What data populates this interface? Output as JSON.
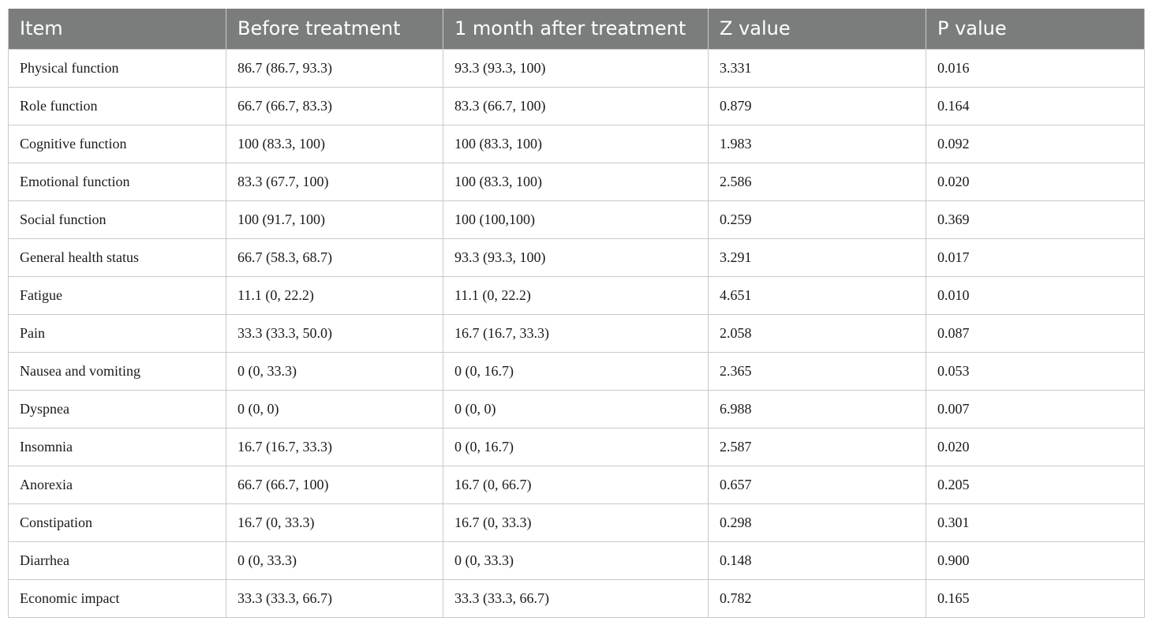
{
  "table": {
    "headers": [
      "Item",
      "Before treatment",
      "1 month after treatment",
      "Z value",
      "P value"
    ],
    "rows": [
      [
        "Physical function",
        "86.7 (86.7, 93.3)",
        "93.3 (93.3, 100)",
        "3.331",
        "0.016"
      ],
      [
        "Role function",
        "66.7 (66.7, 83.3)",
        "83.3 (66.7, 100)",
        "0.879",
        "0.164"
      ],
      [
        "Cognitive function",
        "100 (83.3, 100)",
        "100 (83.3, 100)",
        "1.983",
        "0.092"
      ],
      [
        "Emotional function",
        "83.3 (67.7, 100)",
        "100 (83.3, 100)",
        "2.586",
        "0.020"
      ],
      [
        "Social function",
        "100 (91.7, 100)",
        "100 (100,100)",
        "0.259",
        "0.369"
      ],
      [
        "General health status",
        "66.7 (58.3, 68.7)",
        "93.3 (93.3, 100)",
        "3.291",
        "0.017"
      ],
      [
        "Fatigue",
        "11.1 (0, 22.2)",
        "11.1 (0, 22.2)",
        "4.651",
        "0.010"
      ],
      [
        "Pain",
        "33.3 (33.3, 50.0)",
        "16.7 (16.7, 33.3)",
        "2.058",
        "0.087"
      ],
      [
        "Nausea and vomiting",
        "0 (0, 33.3)",
        "0 (0, 16.7)",
        "2.365",
        "0.053"
      ],
      [
        "Dyspnea",
        "0 (0, 0)",
        "0 (0, 0)",
        "6.988",
        "0.007"
      ],
      [
        "Insomnia",
        "16.7 (16.7, 33.3)",
        "0 (0, 16.7)",
        "2.587",
        "0.020"
      ],
      [
        "Anorexia",
        "66.7 (66.7, 100)",
        "16.7 (0, 66.7)",
        "0.657",
        "0.205"
      ],
      [
        "Constipation",
        "16.7 (0, 33.3)",
        "16.7 (0, 33.3)",
        "0.298",
        "0.301"
      ],
      [
        "Diarrhea",
        "0 (0, 33.3)",
        "0 (0, 33.3)",
        "0.148",
        "0.900"
      ],
      [
        "Economic impact",
        "33.3 (33.3, 66.7)",
        "33.3 (33.3, 66.7)",
        "0.782",
        "0.165"
      ]
    ]
  }
}
